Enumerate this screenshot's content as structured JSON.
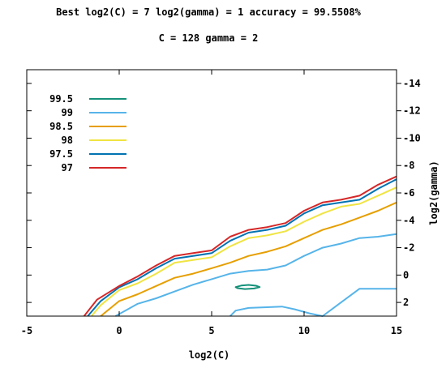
{
  "chart_data": {
    "type": "line",
    "chart_subtype": "contour",
    "title_line1": "Best log2(C) = 7  log2(gamma) = 1  accuracy = 99.5508%",
    "title_line2": "C = 128  gamma = 2",
    "xlabel": "log2(C)",
    "ylabel": "log2(gamma)",
    "xlim": [
      -5,
      15
    ],
    "ylim": [
      3,
      -15
    ],
    "y_axis_position": "right",
    "y_reversed": true,
    "grid": false,
    "legend_position": "top-left",
    "x_ticks": [
      {
        "value": -5,
        "label": "-5"
      },
      {
        "value": 0,
        "label": "0"
      },
      {
        "value": 5,
        "label": "5"
      },
      {
        "value": 10,
        "label": "10"
      },
      {
        "value": 15,
        "label": "15"
      }
    ],
    "y_ticks": [
      {
        "value": -14,
        "label": "-14"
      },
      {
        "value": -12,
        "label": "-12"
      },
      {
        "value": -10,
        "label": "-10"
      },
      {
        "value": -8,
        "label": "-8"
      },
      {
        "value": -6,
        "label": "-6"
      },
      {
        "value": -4,
        "label": "-4"
      },
      {
        "value": -2,
        "label": "-2"
      },
      {
        "value": 0,
        "label": "0"
      },
      {
        "value": 2,
        "label": "2"
      }
    ],
    "series": [
      {
        "name": "99.5",
        "color": "#14917a",
        "closed": true,
        "x": [
          6.3,
          6.6,
          7.0,
          7.4,
          7.6,
          7.3,
          6.8,
          6.4,
          6.3
        ],
        "y": [
          0.88,
          0.77,
          0.72,
          0.78,
          0.88,
          0.98,
          1.02,
          0.96,
          0.88
        ]
      },
      {
        "name": "99",
        "color": "#56b4e9",
        "x": [
          -0.2,
          1.0,
          2.0,
          3.0,
          4.0,
          5.0,
          6.0,
          7.0,
          8.0,
          9.0,
          10.0,
          11.0,
          12.0,
          13.0,
          14.0,
          15.0
        ],
        "y": [
          3.0,
          2.1,
          1.7,
          1.2,
          0.7,
          0.3,
          -0.1,
          -0.3,
          -0.4,
          -0.7,
          -1.4,
          -2.0,
          -2.3,
          -2.7,
          -2.8,
          -3.0
        ]
      },
      {
        "name": "99",
        "color": "#56b4e9",
        "x": [
          6.0,
          6.3,
          7.0,
          8.0,
          8.8,
          9.5,
          10.3,
          11.0,
          12.0,
          13.0,
          14.0,
          15.0
        ],
        "y": [
          3.0,
          2.6,
          2.4,
          2.35,
          2.3,
          2.5,
          2.8,
          3.0,
          2.0,
          1.0,
          1.0,
          1.0
        ]
      },
      {
        "name": "98.5",
        "color": "#e69f00",
        "x": [
          -1.0,
          0.0,
          1.0,
          2.0,
          3.0,
          4.0,
          5.0,
          6.0,
          7.0,
          8.0,
          9.0,
          10.0,
          11.0,
          12.0,
          13.0,
          14.0,
          15.0
        ],
        "y": [
          3.0,
          1.9,
          1.4,
          0.8,
          0.2,
          -0.1,
          -0.5,
          -0.9,
          -1.4,
          -1.7,
          -2.1,
          -2.7,
          -3.3,
          -3.7,
          -4.2,
          -4.7,
          -5.3
        ]
      },
      {
        "name": "98",
        "color": "#f0e442",
        "x": [
          -1.5,
          -1.0,
          0.0,
          1.0,
          2.0,
          3.0,
          4.0,
          5.0,
          6.0,
          7.0,
          8.0,
          9.0,
          10.0,
          11.0,
          12.0,
          13.0,
          14.0,
          15.0
        ],
        "y": [
          3.0,
          2.2,
          1.1,
          0.6,
          -0.1,
          -0.9,
          -1.1,
          -1.3,
          -2.1,
          -2.7,
          -2.9,
          -3.2,
          -3.9,
          -4.5,
          -5.0,
          -5.2,
          -5.8,
          -6.4
        ]
      },
      {
        "name": "97.5",
        "color": "#0072b2",
        "x": [
          -1.7,
          -1.0,
          0.0,
          1.0,
          2.0,
          3.0,
          4.0,
          5.0,
          6.0,
          7.0,
          8.0,
          9.0,
          10.0,
          11.0,
          12.0,
          13.0,
          14.0,
          15.0
        ],
        "y": [
          3.0,
          1.9,
          0.9,
          0.3,
          -0.5,
          -1.2,
          -1.4,
          -1.6,
          -2.5,
          -3.1,
          -3.3,
          -3.6,
          -4.5,
          -5.1,
          -5.3,
          -5.5,
          -6.3,
          -7.0
        ]
      },
      {
        "name": "97",
        "color": "#d62728",
        "x": [
          -1.9,
          -1.2,
          0.0,
          1.0,
          2.0,
          3.0,
          4.0,
          5.0,
          6.0,
          7.0,
          8.0,
          9.0,
          10.0,
          11.0,
          12.0,
          13.0,
          14.0,
          15.0
        ],
        "y": [
          3.0,
          1.8,
          0.8,
          0.1,
          -0.7,
          -1.4,
          -1.6,
          -1.8,
          -2.8,
          -3.3,
          -3.5,
          -3.8,
          -4.7,
          -5.3,
          -5.5,
          -5.8,
          -6.6,
          -7.2
        ]
      }
    ],
    "legend": [
      {
        "label": "99.5",
        "color": "#14917a"
      },
      {
        "label": "99",
        "color": "#56b4e9"
      },
      {
        "label": "98.5",
        "color": "#e69f00"
      },
      {
        "label": "98",
        "color": "#f0e442"
      },
      {
        "label": "97.5",
        "color": "#0072b2"
      },
      {
        "label": "97",
        "color": "#d62728"
      }
    ]
  }
}
